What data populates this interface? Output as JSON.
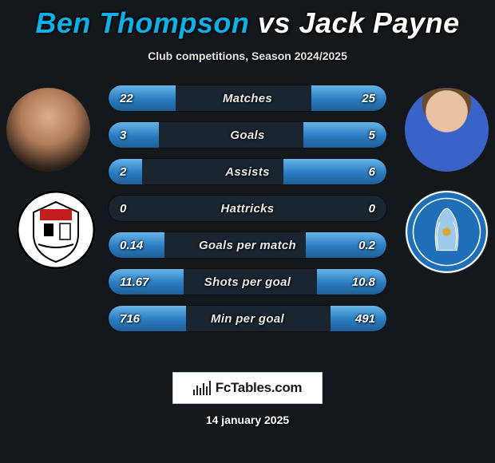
{
  "title": {
    "player1": "Ben Thompson",
    "vs": "vs",
    "player2": "Jack Payne",
    "player1_color": "#0eb0e6",
    "player2_color": "#ffffff"
  },
  "subtitle": "Club competitions, Season 2024/2025",
  "bar_fill_gradient": [
    "#66b4e8",
    "#2a7cc0",
    "#1f5f97"
  ],
  "bar_bg": "#1a2530",
  "page_bg": "#13181c",
  "rows": [
    {
      "label": "Matches",
      "left": "22",
      "right": "25",
      "left_pct": 24,
      "right_pct": 27
    },
    {
      "label": "Goals",
      "left": "3",
      "right": "5",
      "left_pct": 18,
      "right_pct": 30
    },
    {
      "label": "Assists",
      "left": "2",
      "right": "6",
      "left_pct": 12,
      "right_pct": 37
    },
    {
      "label": "Hattricks",
      "left": "0",
      "right": "0",
      "left_pct": 0,
      "right_pct": 0
    },
    {
      "label": "Goals per match",
      "left": "0.14",
      "right": "0.2",
      "left_pct": 20,
      "right_pct": 29
    },
    {
      "label": "Shots per goal",
      "left": "11.67",
      "right": "10.8",
      "left_pct": 27,
      "right_pct": 25
    },
    {
      "label": "Min per goal",
      "left": "716",
      "right": "491",
      "left_pct": 28,
      "right_pct": 20
    }
  ],
  "player1_club": {
    "name": "Bromley FC",
    "crest_colors": {
      "shield": "#ffffff",
      "border": "#000000",
      "accent": "#c31e1e"
    }
  },
  "player2_club": {
    "name": "Colchester United FC",
    "crest_colors": {
      "shield": "#1f6fb8",
      "border": "#ffffff",
      "accent": "#d6a93a"
    }
  },
  "footer": {
    "logo_text": "FcTables.com",
    "date": "14 january 2025",
    "logo_bg": "#ffffff",
    "logo_border": "#c6c6c6",
    "logo_text_color": "#1a1a1a"
  }
}
